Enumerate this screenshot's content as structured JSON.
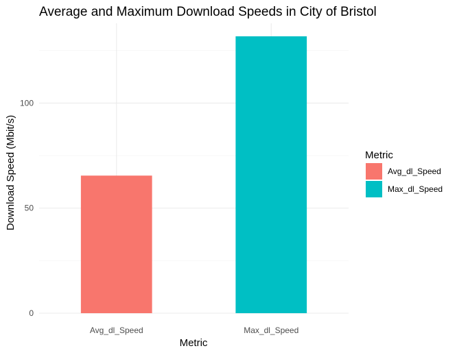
{
  "chart_data": {
    "type": "bar",
    "title": "Average and Maximum Download Speeds in City of Bristol",
    "xlabel": "Metric",
    "ylabel": "Download Speed (Mbit/s)",
    "categories": [
      "Avg_dl_Speed",
      "Max_dl_Speed"
    ],
    "values": [
      65.5,
      131.8
    ],
    "colors": [
      "#F8766D",
      "#00BFC4"
    ],
    "ylim": [
      0,
      138
    ],
    "yticks": [
      0,
      50,
      100
    ],
    "yticks_minor": [
      25,
      75,
      125
    ],
    "grid": true,
    "legend": {
      "title": "Metric",
      "position": "right",
      "entries": [
        "Avg_dl_Speed",
        "Max_dl_Speed"
      ]
    }
  }
}
